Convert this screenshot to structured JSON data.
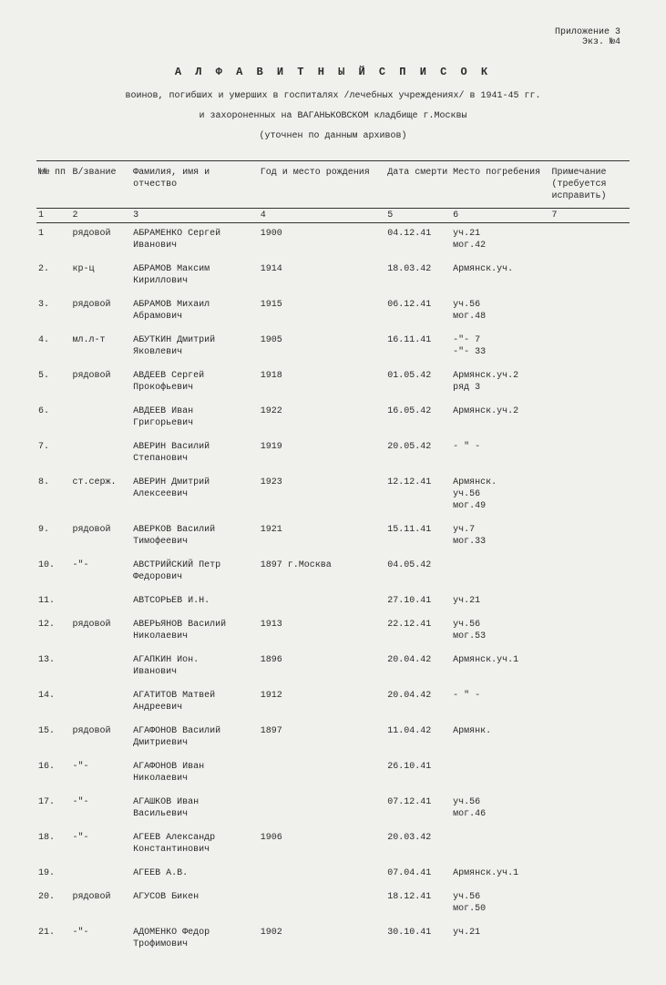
{
  "annotation": {
    "line1": "Приложение 3",
    "line2": "Экз. №4"
  },
  "title": "А Л Ф А В И Т Н Ы Й   С П И С О К",
  "subtitle1": "воинов, погибших и умерших в госпиталях /лечебных учреждениях/ в 1941-45 гг.",
  "subtitle2": "и захороненных на ВАГАНЬКОВСКОМ кладбище г.Москвы",
  "subtitle3": "(уточнен по данным архивов)",
  "headers": {
    "c1": "№№\nпп",
    "c2": "В/звание",
    "c3": "Фамилия, имя и\nотчество",
    "c4": "Год и место рождения",
    "c5": "Дата\nсмерти",
    "c6": "Место\nпогребения",
    "c7": "Примечание\n(требуется\nисправить)"
  },
  "colnums": [
    "1",
    "2",
    "3",
    "4",
    "5",
    "6",
    "7"
  ],
  "rows": [
    {
      "n": "1",
      "rank": "рядовой",
      "name": "АБРАМЕНКО Сергей\nИванович",
      "born": "1900",
      "death": "04.12.41",
      "burial": "уч.21\nмог.42",
      "note": ""
    },
    {
      "n": "2.",
      "rank": "кр-ц",
      "name": "АБРАМОВ Максим\nКириллович",
      "born": "1914",
      "death": "18.03.42",
      "burial": "Армянск.уч.",
      "note": ""
    },
    {
      "n": "3.",
      "rank": "рядовой",
      "name": "АБРАМОВ Михаил\nАбрамович",
      "born": "1915",
      "death": "06.12.41",
      "burial": "уч.56\nмог.48",
      "note": ""
    },
    {
      "n": "4.",
      "rank": "мл.л-т",
      "name": "АБУТКИН Дмитрий\nЯковлевич",
      "born": "1905",
      "death": "16.11.41",
      "burial": "-\"- 7\n-\"- 33",
      "note": ""
    },
    {
      "n": "5.",
      "rank": "рядовой",
      "name": "АВДЕЕВ Сергей\nПрокофьевич",
      "born": "1918",
      "death": "01.05.42",
      "burial": "Армянск.уч.2\nряд 3",
      "note": ""
    },
    {
      "n": "6.",
      "rank": "",
      "name": "АВДЕЕВ Иван\nГригорьевич",
      "born": "1922",
      "death": "16.05.42",
      "burial": "Армянск.уч.2",
      "note": ""
    },
    {
      "n": "7.",
      "rank": "",
      "name": "АВЕРИН Василий\nСтепанович",
      "born": "1919",
      "death": "20.05.42",
      "burial": "-   \"   -",
      "note": ""
    },
    {
      "n": "8.",
      "rank": "ст.серж.",
      "name": "АВЕРИН Дмитрий\nАлексеевич",
      "born": "1923",
      "death": "12.12.41",
      "burial": "Армянск.\nуч.56\nмог.49",
      "note": ""
    },
    {
      "n": "9.",
      "rank": "рядовой",
      "name": "АВЕРКОВ Василий\nТимофеевич",
      "born": "1921",
      "death": "15.11.41",
      "burial": "уч.7\nмог.33",
      "note": ""
    },
    {
      "n": "10.",
      "rank": "-\"-",
      "name": "АВСТРИЙСКИЙ Петр\nФедорович",
      "born": "1897   г.Москва",
      "death": "04.05.42",
      "burial": "",
      "note": ""
    },
    {
      "n": "11.",
      "rank": "",
      "name": "АВТСОРЬЕВ И.Н.",
      "born": "",
      "death": "27.10.41",
      "burial": "уч.21",
      "note": ""
    },
    {
      "n": "12.",
      "rank": "рядовой",
      "name": "АВЕРЬЯНОВ Василий\nНиколаевич",
      "born": "1913",
      "death": "22.12.41",
      "burial": "уч.56\nмог.53",
      "note": ""
    },
    {
      "n": "13.",
      "rank": "",
      "name": "АГАПКИН Ион.\nИванович",
      "born": "1896",
      "death": "20.04.42",
      "burial": "Армянск.уч.1",
      "note": ""
    },
    {
      "n": "14.",
      "rank": "",
      "name": "АГАТИТОВ Матвей\nАндреевич",
      "born": "1912",
      "death": "20.04.42",
      "burial": "-   \"   -",
      "note": ""
    },
    {
      "n": "15.",
      "rank": "рядовой",
      "name": "АГАФОНОВ Василий\nДмитриевич",
      "born": "1897",
      "death": "11.04.42",
      "burial": "Армянк.",
      "note": ""
    },
    {
      "n": "16.",
      "rank": "-\"-",
      "name": "АГАФОНОВ Иван\nНиколаевич",
      "born": "",
      "death": "26.10.41",
      "burial": "",
      "note": ""
    },
    {
      "n": "17.",
      "rank": "-\"-",
      "name": "АГАШКОВ Иван\nВасильевич",
      "born": "",
      "death": "07.12.41",
      "burial": "уч.56\nмог.46",
      "note": ""
    },
    {
      "n": "18.",
      "rank": "-\"-",
      "name": "АГЕЕВ Александр\nКонстантинович",
      "born": "1906",
      "death": "20.03.42",
      "burial": "",
      "note": ""
    },
    {
      "n": "19.",
      "rank": "",
      "name": "АГЕЕВ А.В.",
      "born": "",
      "death": "07.04.41",
      "burial": "Армянск.уч.1",
      "note": ""
    },
    {
      "n": "20.",
      "rank": "рядовой",
      "name": "АГУСОВ Бикен",
      "born": "",
      "death": "18.12.41",
      "burial": "уч.56\nмог.50",
      "note": ""
    },
    {
      "n": "21.",
      "rank": "-\"-",
      "name": "АДОМЕНКО Федор\nТрофимович",
      "born": "1902",
      "death": "30.10.41",
      "burial": "уч.21",
      "note": ""
    }
  ]
}
